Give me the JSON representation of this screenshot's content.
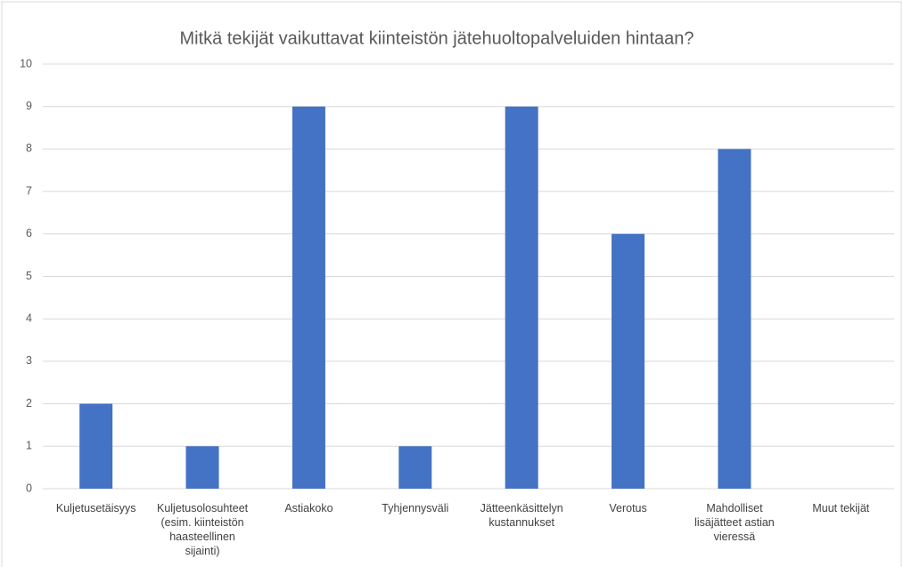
{
  "chart_data": {
    "type": "bar",
    "title": "Mitkä tekijät vaikuttavat kiinteistön jätehuoltopalveluiden hintaan?",
    "categories": [
      "Kuljetusetäisyys",
      "Kuljetusolosuhteet (esim. kiinteistön haasteellinen sijainti)",
      "Astiakoko",
      "Tyhjennysväli",
      "Jätteenkäsittelyn kustannukset",
      "Verotus",
      "Mahdolliset lisäjätteet astian vieressä",
      "Muut tekijät"
    ],
    "values": [
      2,
      1,
      9,
      1,
      9,
      6,
      8,
      0
    ],
    "color": "#4472c4",
    "ylim": [
      0,
      10
    ],
    "yticks": [
      0,
      1,
      2,
      3,
      4,
      5,
      6,
      7,
      8,
      9,
      10
    ],
    "grid": true
  }
}
